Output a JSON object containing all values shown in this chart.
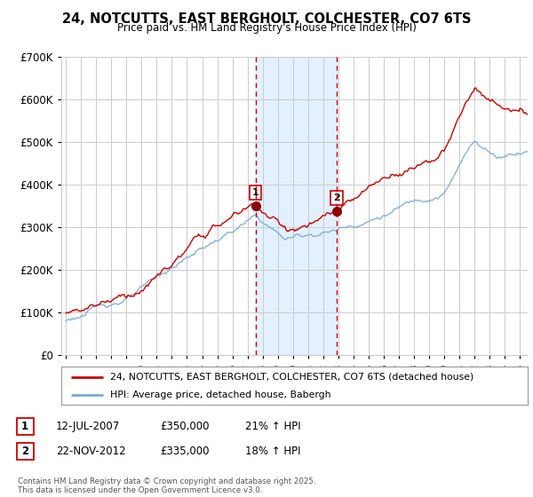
{
  "title": "24, NOTCUTTS, EAST BERGHOLT, COLCHESTER, CO7 6TS",
  "subtitle": "Price paid vs. HM Land Registry's House Price Index (HPI)",
  "legend_line1": "24, NOTCUTTS, EAST BERGHOLT, COLCHESTER, CO7 6TS (detached house)",
  "legend_line2": "HPI: Average price, detached house, Babergh",
  "footer": "Contains HM Land Registry data © Crown copyright and database right 2025.\nThis data is licensed under the Open Government Licence v3.0.",
  "sale1_label": "1",
  "sale1_date": "12-JUL-2007",
  "sale1_price": "£350,000",
  "sale1_hpi": "21% ↑ HPI",
  "sale2_label": "2",
  "sale2_date": "22-NOV-2012",
  "sale2_price": "£335,000",
  "sale2_hpi": "18% ↑ HPI",
  "red_color": "#cc0000",
  "blue_color": "#7aaad0",
  "shade_color": "#ddeeff",
  "background_color": "#ffffff",
  "grid_color": "#cccccc",
  "ylim_min": 0,
  "ylim_max": 700000,
  "year_start": 1995,
  "year_end": 2025,
  "marker1_year": 2007.53,
  "marker2_year": 2012.9,
  "vline1_year": 2007.53,
  "vline2_year": 2012.9
}
